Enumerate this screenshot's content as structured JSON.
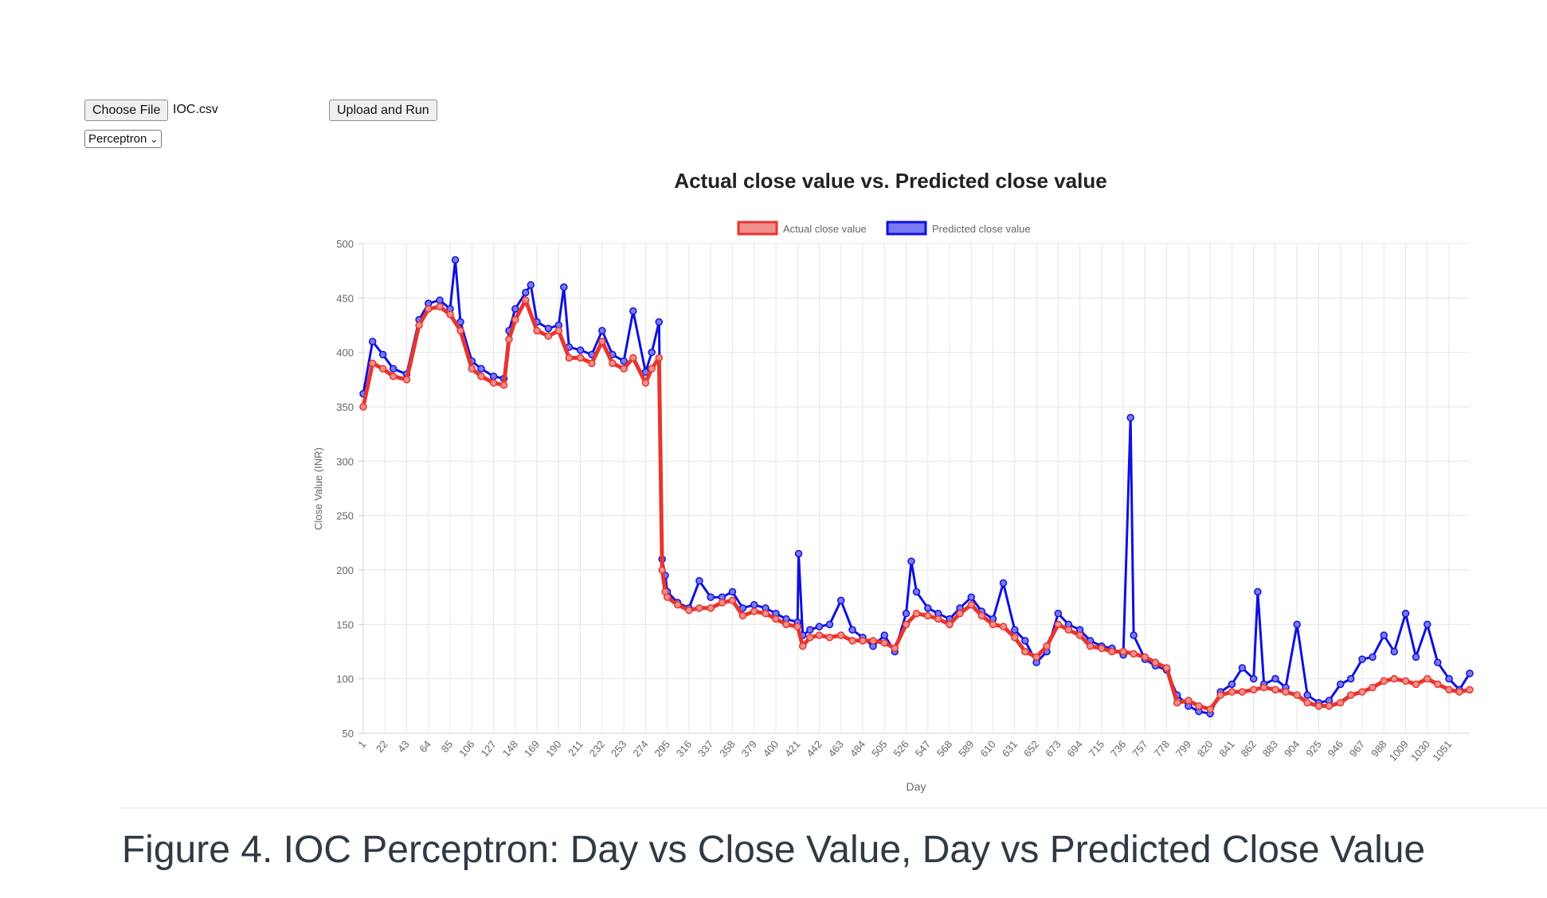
{
  "controls": {
    "choose_file_label": "Choose File",
    "file_name": "IOC.csv",
    "upload_label": "Upload and Run",
    "model_selected": "Perceptron"
  },
  "caption": "Figure 4. IOC Perceptron: Day vs Close Value, Day vs Predicted Close Value",
  "colors": {
    "actual_border": "#e8352e",
    "actual_fill": "#f0908c",
    "predicted_border": "#1010e0",
    "predicted_fill": "#7a7af2",
    "grid": "#e6e6e6",
    "tick_text": "#666666",
    "title_text": "#222222"
  },
  "chart_data": {
    "type": "line",
    "title": "Actual close value vs. Predicted close value",
    "xlabel": "Day",
    "ylabel": "Close Value (INR)",
    "ylim": [
      50,
      500
    ],
    "yticks": [
      50,
      100,
      150,
      200,
      250,
      300,
      350,
      400,
      450,
      500
    ],
    "xlim": [
      1,
      1071
    ],
    "xticks": [
      1,
      22,
      43,
      64,
      85,
      106,
      127,
      148,
      169,
      190,
      211,
      232,
      253,
      274,
      295,
      316,
      337,
      358,
      379,
      400,
      421,
      442,
      463,
      484,
      505,
      526,
      547,
      568,
      589,
      610,
      631,
      652,
      673,
      694,
      715,
      736,
      757,
      778,
      799,
      820,
      841,
      862,
      883,
      904,
      925,
      946,
      967,
      988,
      1009,
      1030,
      1051
    ],
    "grid": true,
    "legend": "top-center",
    "series": [
      {
        "name": "Actual close value",
        "x": [
          1,
          10,
          20,
          30,
          43,
          55,
          64,
          75,
          85,
          95,
          106,
          115,
          127,
          137,
          142,
          148,
          158,
          169,
          180,
          190,
          200,
          211,
          222,
          232,
          242,
          253,
          262,
          274,
          280,
          287,
          290,
          293,
          295,
          305,
          316,
          326,
          337,
          348,
          358,
          368,
          379,
          390,
          400,
          410,
          421,
          426,
          433,
          442,
          452,
          463,
          474,
          484,
          494,
          505,
          515,
          526,
          536,
          547,
          557,
          568,
          578,
          589,
          599,
          610,
          620,
          631,
          641,
          652,
          662,
          673,
          683,
          694,
          704,
          715,
          725,
          736,
          746,
          757,
          767,
          778,
          788,
          799,
          809,
          820,
          830,
          841,
          851,
          862,
          872,
          883,
          893,
          904,
          914,
          925,
          935,
          946,
          956,
          967,
          977,
          988,
          998,
          1009,
          1019,
          1030,
          1040,
          1051,
          1061,
          1071
        ],
        "y": [
          350,
          390,
          385,
          378,
          375,
          425,
          440,
          442,
          435,
          420,
          385,
          378,
          372,
          370,
          412,
          430,
          448,
          420,
          415,
          420,
          395,
          395,
          390,
          410,
          390,
          385,
          395,
          372,
          385,
          395,
          200,
          180,
          175,
          168,
          163,
          165,
          165,
          170,
          172,
          158,
          162,
          160,
          155,
          150,
          148,
          130,
          138,
          140,
          138,
          140,
          135,
          135,
          135,
          133,
          128,
          150,
          160,
          158,
          155,
          150,
          160,
          168,
          158,
          150,
          148,
          138,
          125,
          120,
          130,
          150,
          145,
          140,
          130,
          128,
          125,
          125,
          123,
          120,
          115,
          110,
          78,
          80,
          75,
          72,
          85,
          88,
          88,
          90,
          92,
          90,
          88,
          85,
          78,
          75,
          75,
          78,
          85,
          88,
          92,
          98,
          100,
          98,
          95,
          100,
          95,
          90,
          88,
          90
        ]
      },
      {
        "name": "Predicted close value",
        "x": [
          1,
          10,
          20,
          30,
          43,
          55,
          64,
          75,
          85,
          90,
          95,
          106,
          115,
          127,
          137,
          142,
          148,
          158,
          163,
          169,
          180,
          190,
          195,
          200,
          211,
          222,
          232,
          242,
          253,
          262,
          274,
          280,
          287,
          290,
          293,
          295,
          305,
          316,
          326,
          337,
          348,
          358,
          368,
          379,
          390,
          400,
          410,
          421,
          422,
          426,
          433,
          442,
          452,
          463,
          474,
          484,
          494,
          505,
          515,
          526,
          531,
          536,
          547,
          557,
          568,
          578,
          589,
          599,
          610,
          620,
          631,
          641,
          652,
          662,
          673,
          683,
          694,
          704,
          715,
          725,
          736,
          743,
          746,
          757,
          767,
          778,
          788,
          799,
          809,
          820,
          830,
          841,
          851,
          862,
          866,
          872,
          883,
          893,
          904,
          914,
          925,
          935,
          946,
          956,
          967,
          977,
          988,
          998,
          1009,
          1019,
          1030,
          1040,
          1051,
          1061,
          1071
        ],
        "y": [
          362,
          410,
          398,
          385,
          380,
          430,
          445,
          448,
          440,
          485,
          428,
          392,
          385,
          378,
          376,
          420,
          440,
          455,
          462,
          428,
          422,
          425,
          460,
          405,
          402,
          398,
          420,
          398,
          392,
          438,
          382,
          400,
          428,
          210,
          195,
          180,
          170,
          165,
          190,
          175,
          175,
          180,
          165,
          168,
          165,
          160,
          155,
          152,
          215,
          140,
          145,
          148,
          150,
          172,
          145,
          138,
          130,
          140,
          125,
          160,
          208,
          180,
          165,
          160,
          155,
          165,
          175,
          162,
          155,
          188,
          145,
          135,
          115,
          125,
          160,
          150,
          145,
          135,
          130,
          128,
          122,
          340,
          140,
          118,
          112,
          108,
          85,
          75,
          70,
          68,
          88,
          95,
          110,
          100,
          180,
          95,
          100,
          92,
          150,
          85,
          78,
          80,
          95,
          100,
          118,
          120,
          140,
          125,
          160,
          120,
          150,
          115,
          100,
          90,
          105
        ]
      }
    ]
  }
}
